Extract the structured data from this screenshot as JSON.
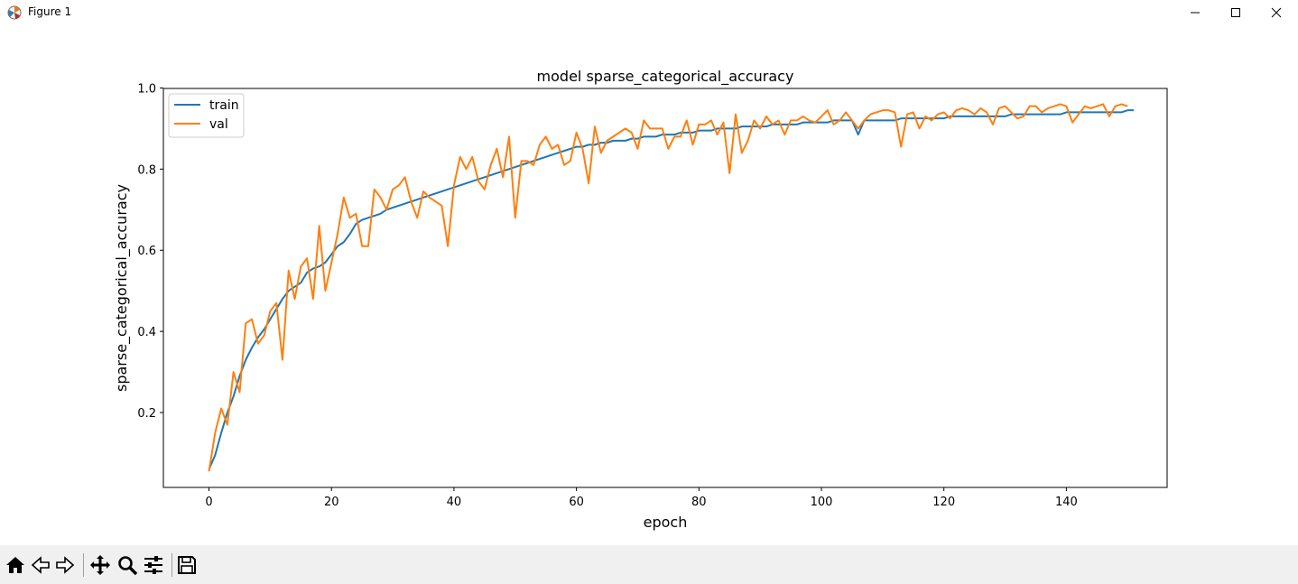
{
  "window": {
    "title": "Figure 1",
    "controls": {
      "minimize_icon": "minimize-icon",
      "maximize_icon": "maximize-icon",
      "close_icon": "close-icon"
    }
  },
  "toolbar": {
    "buttons": [
      "home-icon",
      "back-icon",
      "forward-icon",
      "pan-icon",
      "zoom-icon",
      "configure-subplots-icon",
      "save-icon"
    ]
  },
  "colors": {
    "train": "#1f77b4",
    "val": "#ff7f0e",
    "toolbar_bg": "#f0f0f0"
  },
  "chart_data": {
    "type": "line",
    "title": "model sparse_categorical_accuracy",
    "xlabel": "epoch",
    "ylabel": "sparse_categorical_accuracy",
    "xlim": [
      -7.45,
      156.45
    ],
    "ylim": [
      0.0155,
      0.99875
    ],
    "xticks": [
      0,
      20,
      40,
      60,
      80,
      100,
      120,
      140
    ],
    "yticks": [
      0.2,
      0.4,
      0.6,
      0.8,
      1.0
    ],
    "ytick_labels": [
      "0.2",
      "0.4",
      "0.6",
      "0.8",
      "1.0"
    ],
    "legend": {
      "placement": "upper left",
      "entries": [
        "train",
        "val"
      ]
    },
    "grid": false,
    "x_start": 0,
    "x_step": 1,
    "series": [
      {
        "name": "train",
        "color": "#1f77b4",
        "values": [
          0.06,
          0.095,
          0.15,
          0.2,
          0.24,
          0.29,
          0.33,
          0.36,
          0.385,
          0.405,
          0.43,
          0.455,
          0.48,
          0.5,
          0.51,
          0.52,
          0.545,
          0.555,
          0.56,
          0.57,
          0.59,
          0.61,
          0.62,
          0.64,
          0.665,
          0.675,
          0.68,
          0.685,
          0.69,
          0.7,
          0.705,
          0.71,
          0.715,
          0.72,
          0.725,
          0.73,
          0.735,
          0.74,
          0.745,
          0.75,
          0.755,
          0.76,
          0.765,
          0.77,
          0.775,
          0.78,
          0.785,
          0.79,
          0.795,
          0.8,
          0.805,
          0.81,
          0.815,
          0.82,
          0.825,
          0.83,
          0.835,
          0.84,
          0.845,
          0.85,
          0.855,
          0.855,
          0.86,
          0.86,
          0.865,
          0.865,
          0.87,
          0.87,
          0.87,
          0.875,
          0.875,
          0.88,
          0.88,
          0.88,
          0.885,
          0.885,
          0.885,
          0.89,
          0.89,
          0.89,
          0.895,
          0.895,
          0.895,
          0.9,
          0.9,
          0.9,
          0.9,
          0.905,
          0.905,
          0.905,
          0.905,
          0.905,
          0.91,
          0.91,
          0.91,
          0.91,
          0.91,
          0.915,
          0.915,
          0.915,
          0.915,
          0.915,
          0.92,
          0.92,
          0.92,
          0.92,
          0.885,
          0.92,
          0.92,
          0.92,
          0.92,
          0.92,
          0.92,
          0.925,
          0.925,
          0.925,
          0.925,
          0.925,
          0.925,
          0.925,
          0.925,
          0.93,
          0.93,
          0.93,
          0.93,
          0.93,
          0.93,
          0.93,
          0.93,
          0.93,
          0.93,
          0.935,
          0.935,
          0.935,
          0.935,
          0.935,
          0.935,
          0.935,
          0.935,
          0.935,
          0.94,
          0.94,
          0.94,
          0.94,
          0.94,
          0.94,
          0.94,
          0.94,
          0.94,
          0.94,
          0.945,
          0.945
        ]
      },
      {
        "name": "val",
        "color": "#ff7f0e",
        "values": [
          0.055,
          0.15,
          0.21,
          0.17,
          0.3,
          0.25,
          0.42,
          0.43,
          0.37,
          0.39,
          0.45,
          0.47,
          0.33,
          0.55,
          0.48,
          0.56,
          0.58,
          0.48,
          0.66,
          0.5,
          0.57,
          0.64,
          0.73,
          0.68,
          0.69,
          0.61,
          0.61,
          0.75,
          0.73,
          0.7,
          0.75,
          0.76,
          0.78,
          0.72,
          0.68,
          0.745,
          0.73,
          0.72,
          0.71,
          0.61,
          0.76,
          0.83,
          0.8,
          0.83,
          0.77,
          0.75,
          0.81,
          0.85,
          0.78,
          0.88,
          0.68,
          0.82,
          0.82,
          0.81,
          0.86,
          0.88,
          0.85,
          0.86,
          0.81,
          0.82,
          0.89,
          0.85,
          0.765,
          0.905,
          0.84,
          0.87,
          0.88,
          0.89,
          0.9,
          0.89,
          0.85,
          0.92,
          0.9,
          0.9,
          0.9,
          0.85,
          0.88,
          0.88,
          0.92,
          0.86,
          0.91,
          0.91,
          0.92,
          0.885,
          0.915,
          0.79,
          0.935,
          0.84,
          0.87,
          0.92,
          0.9,
          0.93,
          0.91,
          0.92,
          0.885,
          0.92,
          0.92,
          0.93,
          0.92,
          0.915,
          0.93,
          0.945,
          0.91,
          0.92,
          0.94,
          0.92,
          0.9,
          0.92,
          0.935,
          0.94,
          0.945,
          0.945,
          0.94,
          0.855,
          0.935,
          0.94,
          0.9,
          0.93,
          0.92,
          0.935,
          0.94,
          0.925,
          0.945,
          0.95,
          0.945,
          0.935,
          0.95,
          0.94,
          0.91,
          0.95,
          0.955,
          0.94,
          0.925,
          0.93,
          0.955,
          0.955,
          0.94,
          0.95,
          0.955,
          0.96,
          0.955,
          0.915,
          0.935,
          0.955,
          0.95,
          0.955,
          0.96,
          0.93,
          0.955,
          0.96,
          0.955
        ]
      }
    ]
  }
}
